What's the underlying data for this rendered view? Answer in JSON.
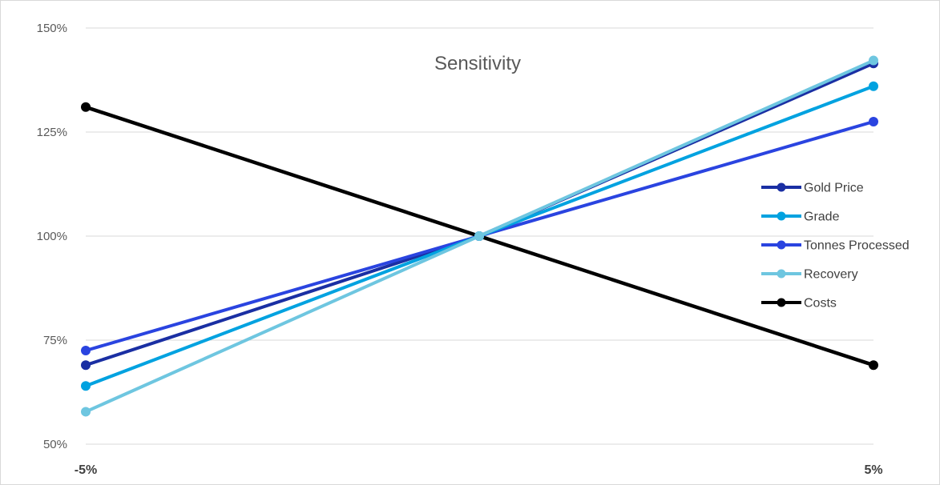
{
  "chart_data": {
    "type": "line",
    "title": "Sensitivity",
    "xlabel": "",
    "ylabel": "",
    "x": [
      "-5%",
      "",
      "5%"
    ],
    "xtick_labels": [
      "-5%",
      "5%"
    ],
    "ylim": [
      0.5,
      1.5
    ],
    "yticks": [
      0.5,
      0.75,
      1.0,
      1.25,
      1.5
    ],
    "ytick_labels": [
      "50%",
      "75%",
      "100%",
      "125%",
      "150%"
    ],
    "grid": true,
    "legend_position": "right",
    "series": [
      {
        "name": "Gold Price",
        "values": [
          0.69,
          1.0,
          1.415
        ],
        "color": "#1a2fa3"
      },
      {
        "name": "Grade",
        "values": [
          0.64,
          1.0,
          1.36
        ],
        "color": "#00a2e0"
      },
      {
        "name": "Tonnes Processed",
        "values": [
          0.725,
          1.0,
          1.275
        ],
        "color": "#2a44e0"
      },
      {
        "name": "Recovery",
        "values": [
          0.578,
          1.0,
          1.422
        ],
        "color": "#6ec6e0"
      },
      {
        "name": "Costs",
        "values": [
          1.31,
          1.0,
          0.69
        ],
        "color": "#000000"
      }
    ]
  }
}
